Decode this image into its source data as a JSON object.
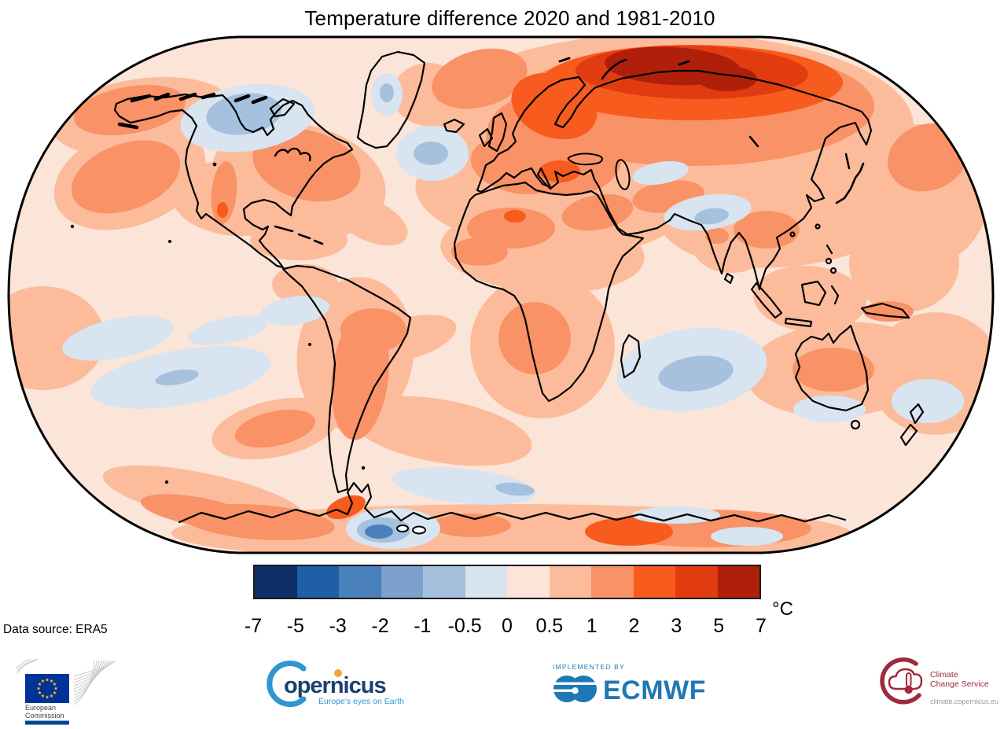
{
  "title": "Temperature difference 2020 and 1981-2010",
  "data_source": "Data source: ERA5",
  "colorbar": {
    "unit": "°C",
    "tick_labels": [
      "-7",
      "-5",
      "-3",
      "-2",
      "-1",
      "-0.5",
      "0",
      "0.5",
      "1",
      "2",
      "3",
      "5",
      "7"
    ],
    "segment_colors": [
      "#0e2e66",
      "#1f5fa7",
      "#4a80bc",
      "#7ca1cd",
      "#a6c1dd",
      "#d8e4f0",
      "#fbe5d8",
      "#fcbc9c",
      "#f99266",
      "#f75b1e",
      "#e13c10",
      "#b01f0a"
    ]
  },
  "chart_data": {
    "type": "heatmap",
    "title": "Temperature difference 2020 and 1981-2010",
    "unit": "°C",
    "projection": "Robinson world map",
    "scale_boundaries": [
      -7,
      -5,
      -3,
      -2,
      -1,
      -0.5,
      0,
      0.5,
      1,
      2,
      3,
      5,
      7
    ],
    "palette": [
      "#0e2e66",
      "#1f5fa7",
      "#4a80bc",
      "#7ca1cd",
      "#a6c1dd",
      "#d8e4f0",
      "#fbe5d8",
      "#fcbc9c",
      "#f99266",
      "#f75b1e",
      "#e13c10",
      "#b01f0a"
    ],
    "data_source": "ERA5",
    "notable_regions": [
      {
        "region": "Arctic Siberia coast",
        "anomaly_c": "+5 to +7"
      },
      {
        "region": "Northern Siberia / Barents region",
        "anomaly_c": "+3 to +5"
      },
      {
        "region": "Scandinavia and eastern Europe",
        "anomaly_c": "+2 to +3"
      },
      {
        "region": "Most Northern Hemisphere land",
        "anomaly_c": "+1 to +2"
      },
      {
        "region": "Hudson Bay / northern Canada",
        "anomaly_c": "-1 to 0"
      },
      {
        "region": "North Atlantic south of Greenland",
        "anomaly_c": "-1 to 0"
      },
      {
        "region": "Southern Indian Ocean",
        "anomaly_c": "-1 to 0"
      },
      {
        "region": "Southern Pacific bands",
        "anomaly_c": "-0.5 to 0"
      },
      {
        "region": "Antarctic coast patches",
        "anomaly_c": "+1 to +3"
      },
      {
        "region": "Ross Sea / Antarctic blue spot",
        "anomaly_c": "-2 to -1"
      },
      {
        "region": "Tropical oceans",
        "anomaly_c": "0 to +1"
      }
    ]
  },
  "logos": {
    "european_commission": {
      "line1": "European",
      "line2": "Commission",
      "flag_blue": "#003399",
      "star_yellow": "#ffcc00",
      "bar_blue": "#004494"
    },
    "copernicus": {
      "wordmark": "opernicus",
      "tagline": "Europe's eyes on Earth",
      "blue": "#2e96d1",
      "navy": "#1b3f72",
      "dot_orange": "#f2a33c"
    },
    "ecmwf": {
      "pre_text": "IMPLEMENTED BY",
      "wordmark": "ECMWF",
      "blue": "#1e78b4"
    },
    "climate_change_service": {
      "line1": "Climate",
      "line2": "Change Service",
      "url": "climate.copernicus.eu",
      "maroon": "#9e2a3b",
      "gray": "#9a9a9a"
    }
  }
}
